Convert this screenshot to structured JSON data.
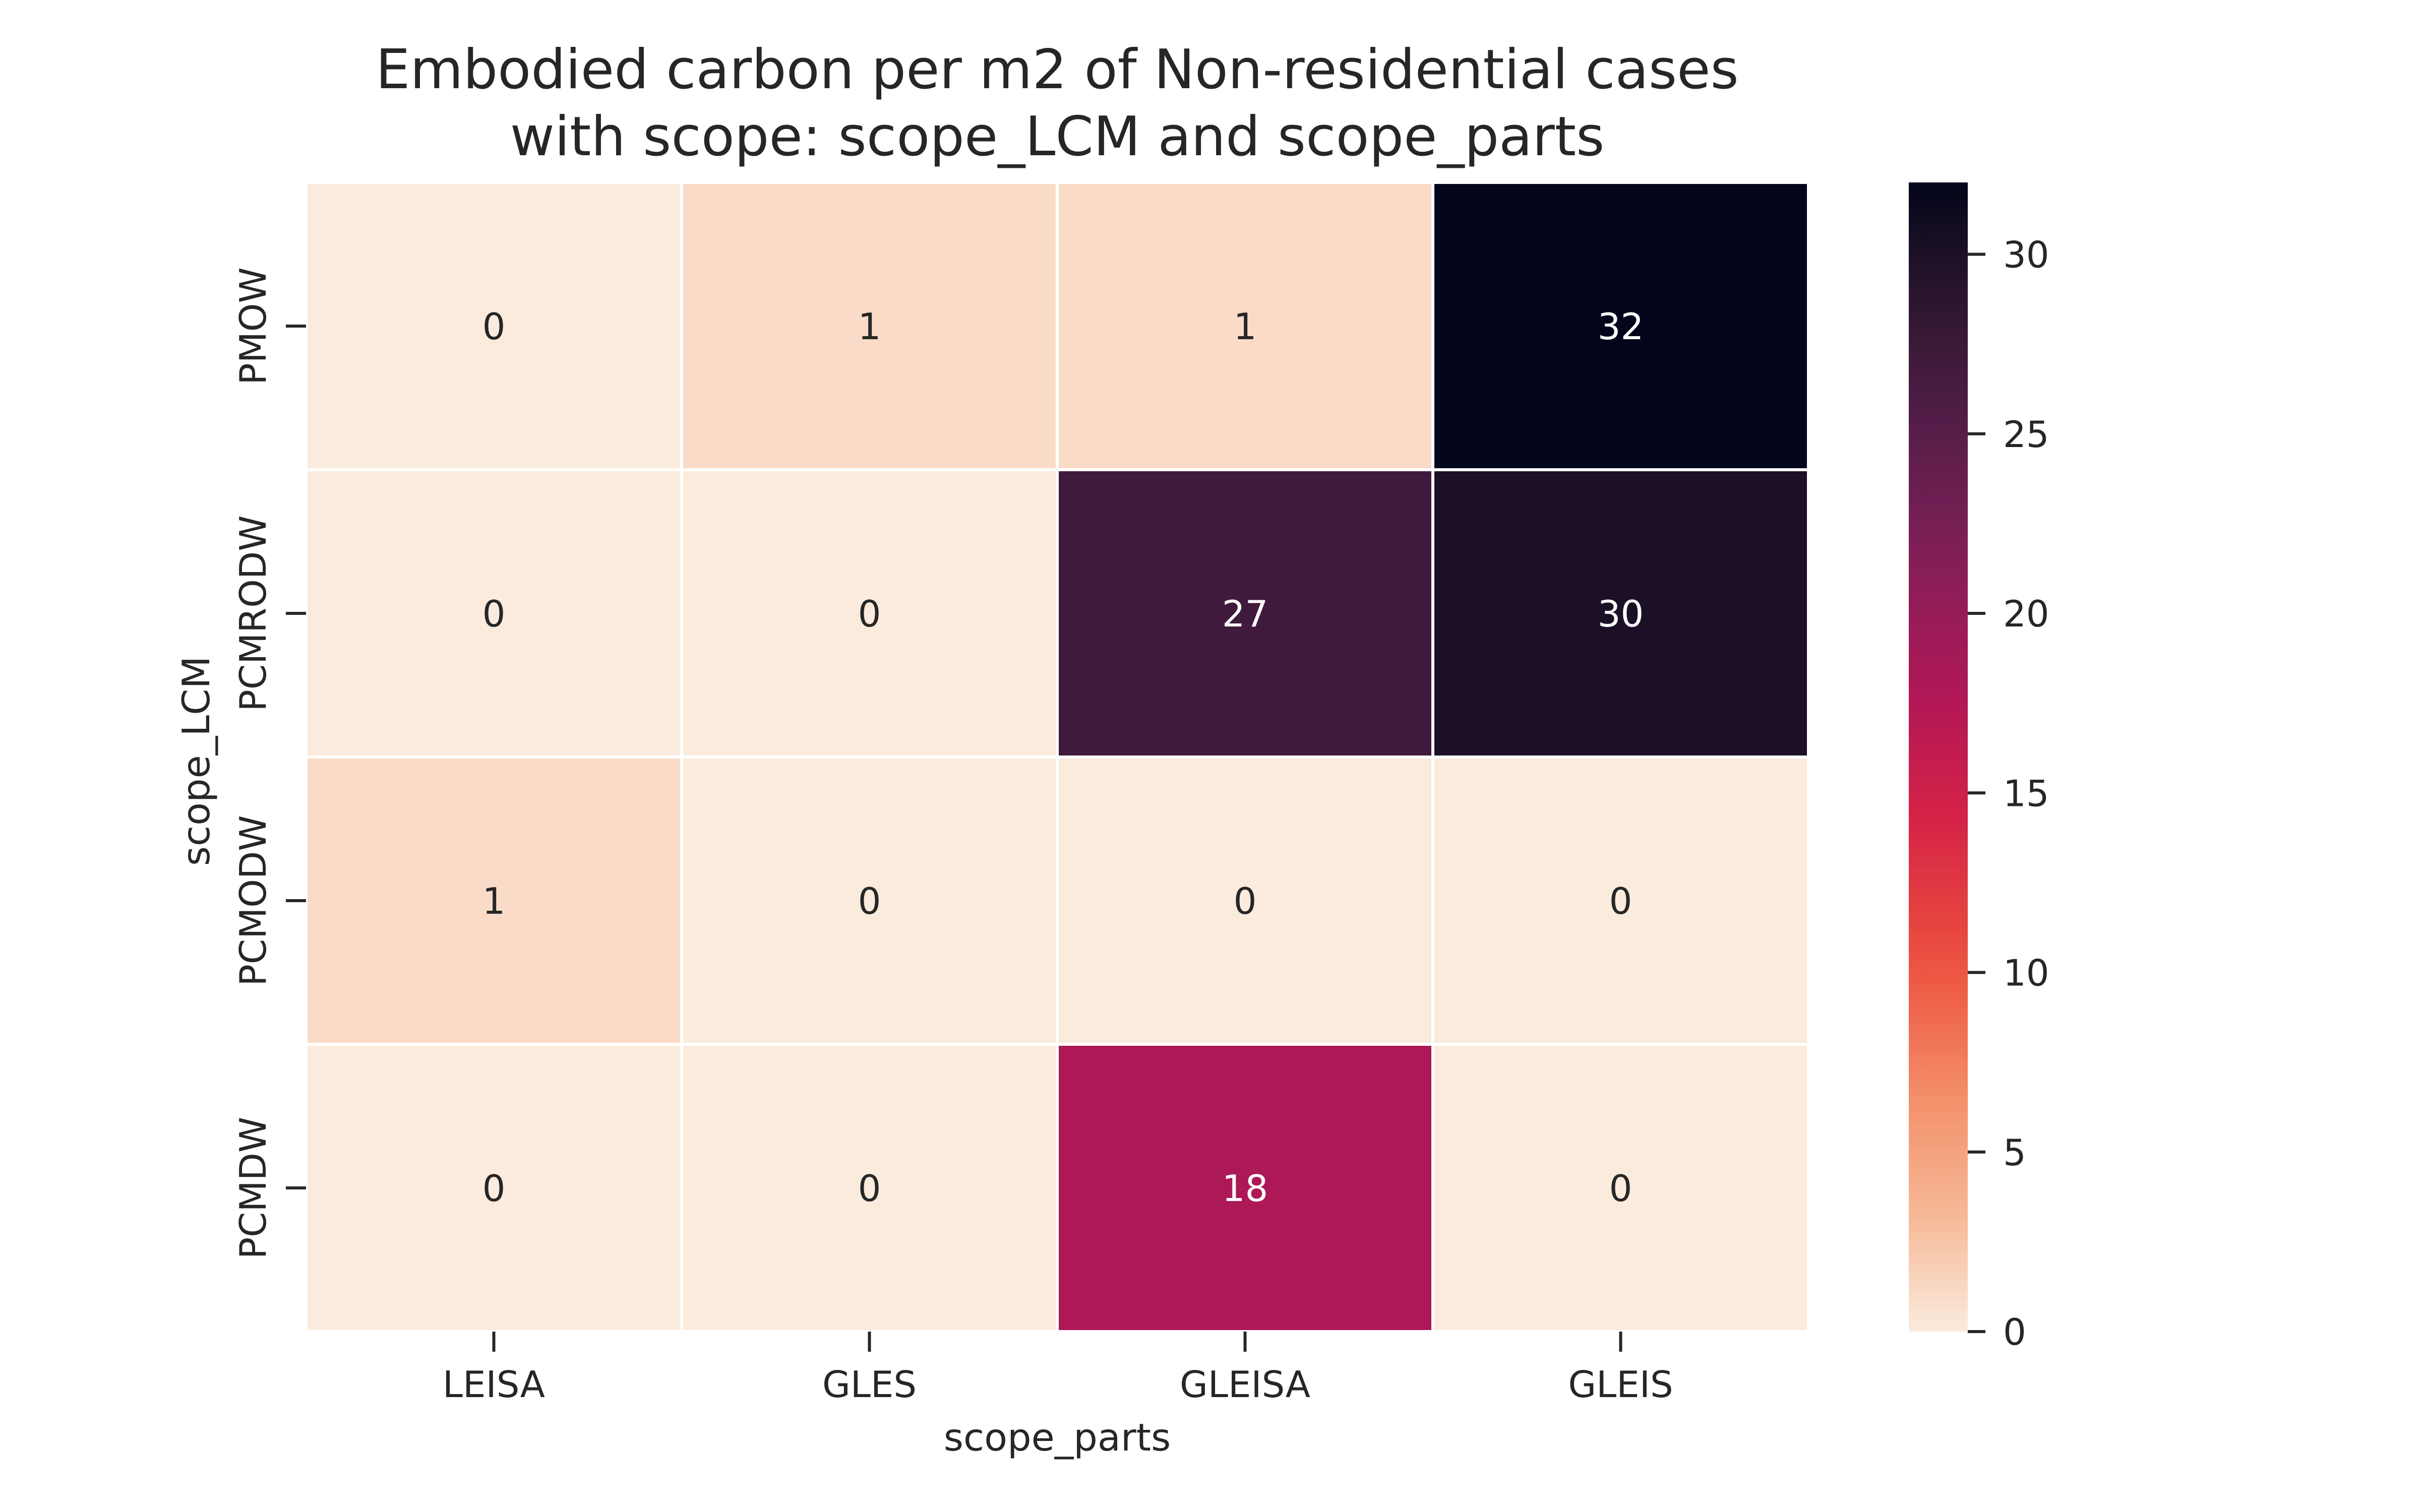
{
  "chart_data": {
    "type": "heatmap",
    "title": [
      "Embodied carbon per m2 of Non-residential cases",
      "with scope: scope_LCM and scope_parts"
    ],
    "xlabel": "scope_parts",
    "ylabel": "scope_LCM",
    "x_categories": [
      "LEISA",
      "GLES",
      "GLEISA",
      "GLEIS"
    ],
    "y_categories": [
      "PMOW",
      "PCMRODW",
      "PCMODW",
      "PCMDW"
    ],
    "values": [
      [
        0,
        1,
        1,
        32
      ],
      [
        0,
        0,
        27,
        30
      ],
      [
        1,
        0,
        0,
        0
      ],
      [
        0,
        0,
        18,
        0
      ]
    ],
    "colorbar": {
      "vmin": 0,
      "vmax": 32,
      "ticks": [
        0,
        5,
        10,
        15,
        20,
        25,
        30
      ],
      "colormap": "rocket_r"
    },
    "legend": "colorbar right"
  }
}
